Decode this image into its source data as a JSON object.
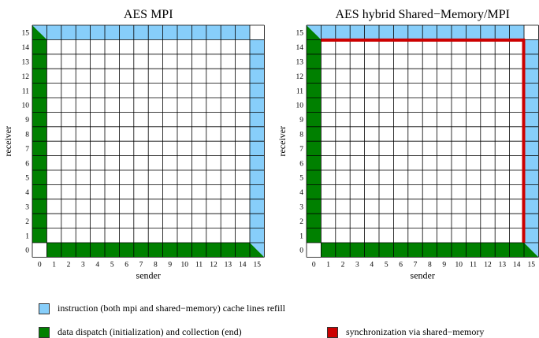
{
  "chart_data": [
    {
      "type": "heatmap",
      "title": "AES MPI",
      "xlabel": "sender",
      "ylabel": "receiver",
      "x_ticks": [
        "0",
        "1",
        "2",
        "3",
        "4",
        "5",
        "6",
        "7",
        "8",
        "9",
        "10",
        "11",
        "12",
        "13",
        "14",
        "15"
      ],
      "y_ticks": [
        "0",
        "1",
        "2",
        "3",
        "4",
        "5",
        "6",
        "7",
        "8",
        "9",
        "10",
        "11",
        "12",
        "13",
        "14",
        "15"
      ],
      "cells": [
        {
          "sender": 0,
          "receivers": [
            1,
            2,
            3,
            4,
            5,
            6,
            7,
            8,
            9,
            10,
            11,
            12,
            13,
            14
          ],
          "category": "dispatch"
        },
        {
          "sender": 0,
          "receivers": [
            15
          ],
          "category": "dispatch_refill_split"
        },
        {
          "senders": [
            1,
            2,
            3,
            4,
            5,
            6,
            7,
            8,
            9,
            10,
            11,
            12,
            13,
            14
          ],
          "receiver": 0,
          "category": "dispatch"
        },
        {
          "sender": 15,
          "receivers": [
            0
          ],
          "category": "dispatch_refill_split"
        },
        {
          "senders": [
            1,
            2,
            3,
            4,
            5,
            6,
            7,
            8,
            9,
            10,
            11,
            12,
            13,
            14
          ],
          "receiver": 15,
          "category": "refill"
        },
        {
          "sender": 15,
          "receivers": [
            1,
            2,
            3,
            4,
            5,
            6,
            7,
            8,
            9,
            10,
            11,
            12,
            13,
            14
          ],
          "category": "refill"
        }
      ],
      "synchronization": false
    },
    {
      "type": "heatmap",
      "title": "AES hybrid Shared−Memory/MPI",
      "xlabel": "sender",
      "ylabel": "receiver",
      "x_ticks": [
        "0",
        "1",
        "2",
        "3",
        "4",
        "5",
        "6",
        "7",
        "8",
        "9",
        "10",
        "11",
        "12",
        "13",
        "14",
        "15"
      ],
      "y_ticks": [
        "0",
        "1",
        "2",
        "3",
        "4",
        "5",
        "6",
        "7",
        "8",
        "9",
        "10",
        "11",
        "12",
        "13",
        "14",
        "15"
      ],
      "cells": [
        {
          "sender": 0,
          "receivers": [
            1,
            2,
            3,
            4,
            5,
            6,
            7,
            8,
            9,
            10,
            11,
            12,
            13,
            14
          ],
          "category": "dispatch"
        },
        {
          "sender": 0,
          "receivers": [
            15
          ],
          "category": "dispatch_refill_split"
        },
        {
          "senders": [
            1,
            2,
            3,
            4,
            5,
            6,
            7,
            8,
            9,
            10,
            11,
            12,
            13,
            14
          ],
          "receiver": 0,
          "category": "dispatch"
        },
        {
          "sender": 15,
          "receivers": [
            0
          ],
          "category": "dispatch_refill_split"
        },
        {
          "senders": [
            1,
            2,
            3,
            4,
            5,
            6,
            7,
            8,
            9,
            10,
            11,
            12,
            13,
            14
          ],
          "receiver": 15,
          "category": "refill"
        },
        {
          "sender": 15,
          "receivers": [
            1,
            2,
            3,
            4,
            5,
            6,
            7,
            8,
            9,
            10,
            11,
            12,
            13,
            14
          ],
          "category": "refill"
        }
      ],
      "synchronization": true
    }
  ],
  "colors": {
    "refill": "#87cefa",
    "dispatch": "#008000",
    "sync": "#cc0000",
    "grid": "#000000"
  },
  "legend": [
    {
      "key": "refill",
      "label": "instruction (both mpi and shared−memory) cache lines refill"
    },
    {
      "key": "dispatch",
      "label": "data dispatch (initialization) and collection (end)"
    },
    {
      "key": "sync",
      "label": "synchronization via shared−memory"
    }
  ]
}
